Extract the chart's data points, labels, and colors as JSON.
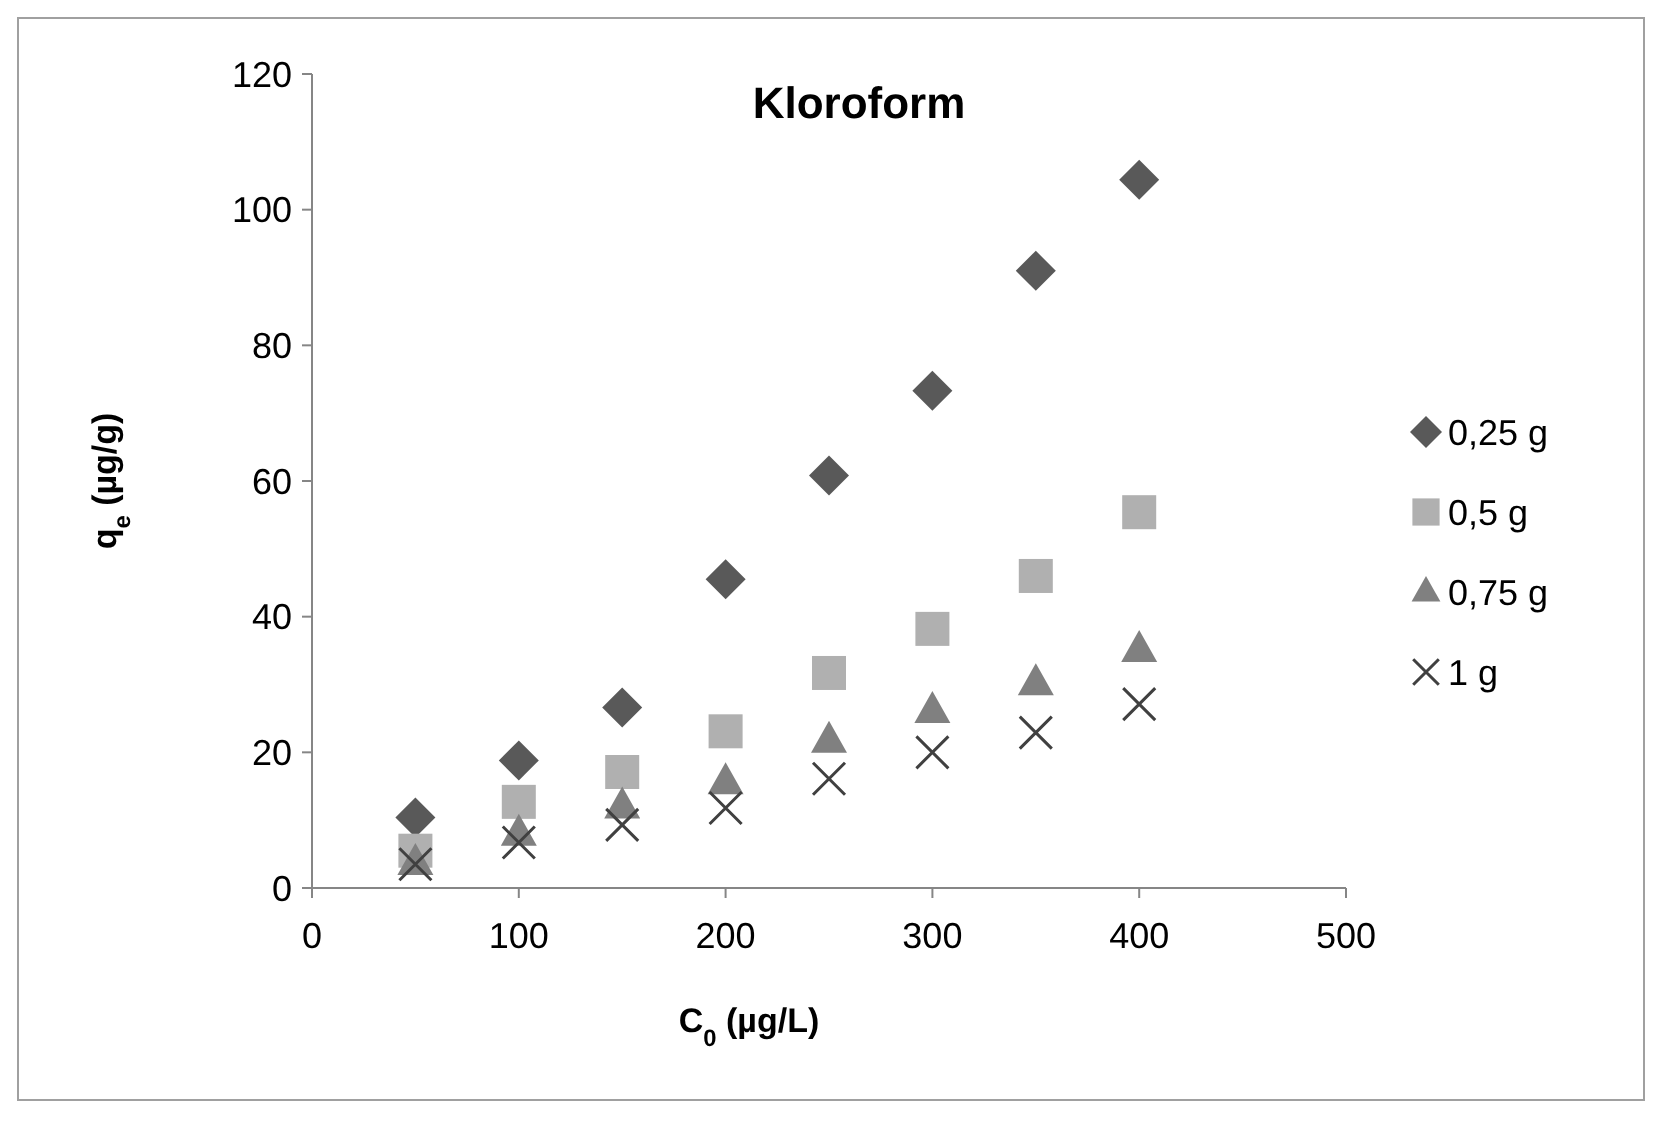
{
  "chart_data": {
    "type": "scatter",
    "title": "Kloroform",
    "xlabel": "C$_{0}$ (µg/L)",
    "ylabel": "q$_{e}$ (µg/g)",
    "x": [
      50,
      100,
      150,
      200,
      250,
      300,
      350,
      400
    ],
    "xlim": [
      0,
      500
    ],
    "xticks": [
      0,
      100,
      200,
      300,
      400,
      500
    ],
    "ylim": [
      0,
      120
    ],
    "yticks": [
      0,
      20,
      40,
      60,
      80,
      100,
      120
    ],
    "grid": false,
    "legend": "right",
    "series": [
      {
        "name": "0,25 g",
        "color": "#595959",
        "marker": "diamond",
        "values": [
          10.4,
          18.8,
          26.6,
          45.5,
          60.8,
          73.3,
          91.0,
          104.4
        ]
      },
      {
        "name": "0,5 g",
        "color": "#b0b0b0",
        "marker": "square",
        "values": [
          5.5,
          12.7,
          17.1,
          23.1,
          31.7,
          38.2,
          46.0,
          55.4
        ]
      },
      {
        "name": "0,75 g",
        "color": "#808080",
        "marker": "triangle",
        "values": [
          3.7,
          8.0,
          12.0,
          15.6,
          21.7,
          26.1,
          30.2,
          35.1
        ]
      },
      {
        "name": "1 g",
        "color": "#404040",
        "marker": "cross",
        "values": [
          3.5,
          6.7,
          9.3,
          11.8,
          16.1,
          20.0,
          22.9,
          27.1
        ]
      }
    ]
  }
}
